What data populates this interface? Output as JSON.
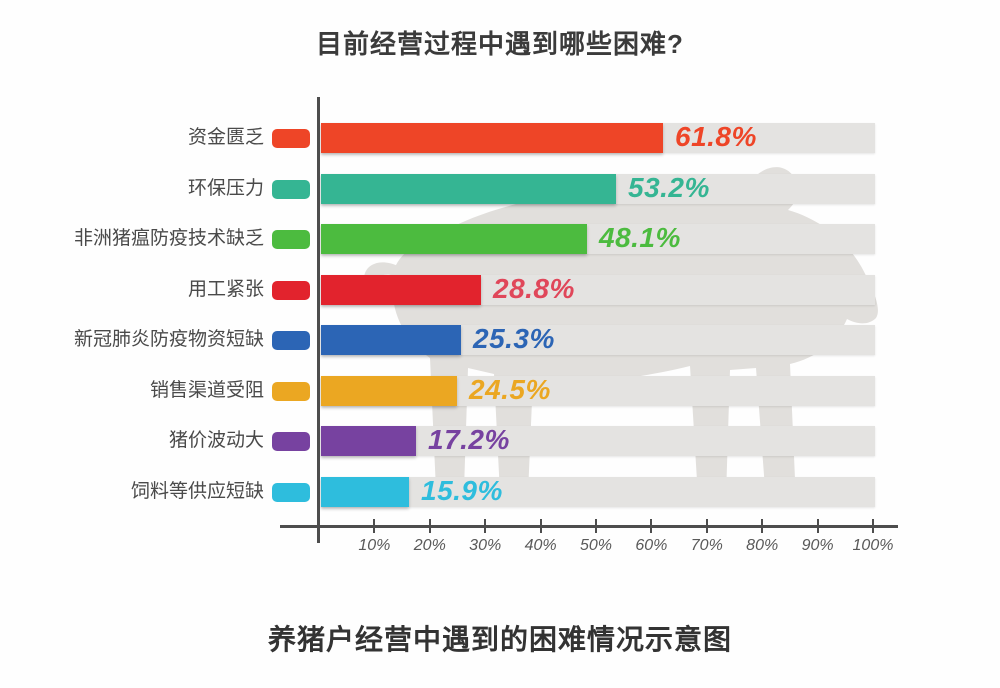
{
  "title": "目前经营过程中遇到哪些困难?",
  "caption": "养猪户经营中遇到的困难情况示意图",
  "chart_data": {
    "type": "bar",
    "orientation": "horizontal",
    "title": "目前经营过程中遇到哪些困难?",
    "subtitle_caption": "养猪户经营中遇到的困难情况示意图",
    "categories": [
      "资金匮乏",
      "环保压力",
      "非洲猪瘟防疫技术缺乏",
      "用工紧张",
      "新冠肺炎防疫物资短缺",
      "销售渠道受阻",
      "猪价波动大",
      "饲料等供应短缺"
    ],
    "values": [
      61.8,
      53.2,
      48.1,
      28.8,
      25.3,
      24.5,
      17.2,
      15.9
    ],
    "value_labels": [
      "61.8%",
      "53.2%",
      "48.1%",
      "28.8%",
      "25.3%",
      "24.5%",
      "17.2%",
      "15.9%"
    ],
    "bar_colors": [
      "#ee4527",
      "#35b593",
      "#4cbb3f",
      "#e2232d",
      "#2c65b5",
      "#eba722",
      "#7742a0",
      "#2ebddd"
    ],
    "value_label_colors": [
      "#ee4527",
      "#35b593",
      "#4cbb3f",
      "#e0475a",
      "#2c65b5",
      "#eba722",
      "#7742a0",
      "#2ebddd"
    ],
    "xlim": [
      0,
      100
    ],
    "x_ticks": [
      "10%",
      "20%",
      "30%",
      "40%",
      "50%",
      "60%",
      "70%",
      "80%",
      "90%",
      "100%"
    ],
    "grid": false,
    "legend": "none",
    "track_color": "#e4e3e1",
    "axis_color": "#4d4d4d",
    "watermark": "pig-silhouette",
    "watermark_color": "#e1dfdc"
  }
}
